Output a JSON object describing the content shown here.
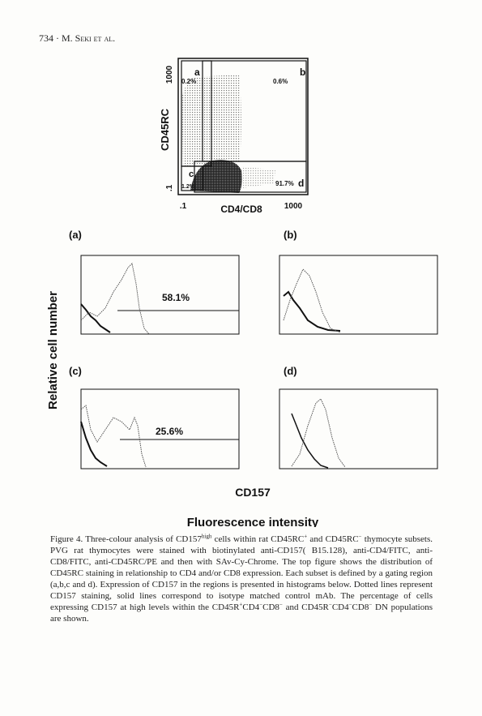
{
  "header": {
    "page": "734",
    "author": "M. Seki et al."
  },
  "dot_plot": {
    "y_label": "CD45RC",
    "x_label": "CD4/CD8",
    "y_tick_high": "1000",
    "y_tick_low": ".1",
    "x_tick_low": ".1",
    "x_tick_high": "1000",
    "regions": [
      {
        "label": "a",
        "percent": "0.2%"
      },
      {
        "label": "b",
        "percent": "0.6%"
      },
      {
        "label": "c",
        "percent": "1.2%"
      },
      {
        "label": "d",
        "percent": "91.7%"
      }
    ]
  },
  "histograms": [
    {
      "label": "(a)",
      "percent": "58.1%"
    },
    {
      "label": "(b)"
    },
    {
      "label": "(c)",
      "percent": "25.6%"
    },
    {
      "label": "(d)"
    }
  ],
  "y_axis_title": "Relative cell number",
  "x_axis_marker": "CD157",
  "x_axis_title": "Fluorescence intensity",
  "caption": {
    "parts": [
      "Figure 4.",
      " Three-colour analysis of CD157",
      "high",
      " cells within rat CD45RC",
      "+",
      " and CD45RC",
      "−",
      " thymocyte subsets. PVG rat thymocytes were stained with biotinylated anti-CD157( B15.128), anti-CD4/FITC, anti-CD8/FITC, anti-CD45RC/PE and then with SAv-Cy-Chrome. The top figure shows the distribution of CD45RC staining in relationship to CD4 and/or CD8 expression. Each subset is defined by a gating region (a,b,c and d). Expression of CD157 in the regions is presented in histograms below. Dotted lines represent CD157 staining, solid lines correspond to isotype matched control mAb. The percentage of cells expressing CD157 at high levels within the CD45R",
      "+",
      "CD4",
      "−",
      "CD8",
      "−",
      " and CD45R",
      "−",
      "CD4",
      "−",
      "CD8",
      "−",
      " DN populations are shown."
    ]
  }
}
